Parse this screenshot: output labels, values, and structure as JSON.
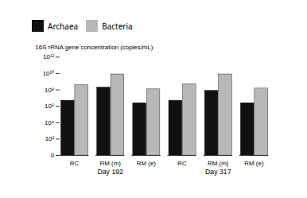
{
  "chart_data": {
    "type": "bar",
    "ylabel": "16S rRNA gene concentration (copies/mL)",
    "categories": [
      "RC",
      "RM (m)",
      "RM (e)",
      "RC",
      "RM (m)",
      "RM (e)"
    ],
    "groups": [
      "Day 192",
      "Day 192",
      "Day 192",
      "Day 317",
      "Day 317",
      "Day 317"
    ],
    "series": [
      {
        "name": "Archaea",
        "color": "#111111",
        "values": [
          5000000.0,
          200000000.0,
          2500000.0,
          5000000.0,
          80000000.0,
          2500000.0
        ]
      },
      {
        "name": "Bacteria",
        "color": "#b8b8b8",
        "values": [
          400000000.0,
          8000000000.0,
          120000000.0,
          500000000.0,
          8000000000.0,
          150000000.0
        ]
      }
    ],
    "log": "y",
    "ylim": [
      0,
      1000000000000
    ],
    "yticks": [
      0,
      {
        "value": 100,
        "label": "10²"
      },
      {
        "value": 10000,
        "label": "10⁴"
      },
      {
        "value": 1000000,
        "label": "10⁶"
      },
      {
        "value": 100000000,
        "label": "10⁸"
      },
      {
        "value": 10000000000,
        "label": "10¹⁰"
      },
      {
        "value": 1000000000000,
        "label": "10¹²"
      }
    ],
    "grid": false,
    "legend": "upper left"
  }
}
